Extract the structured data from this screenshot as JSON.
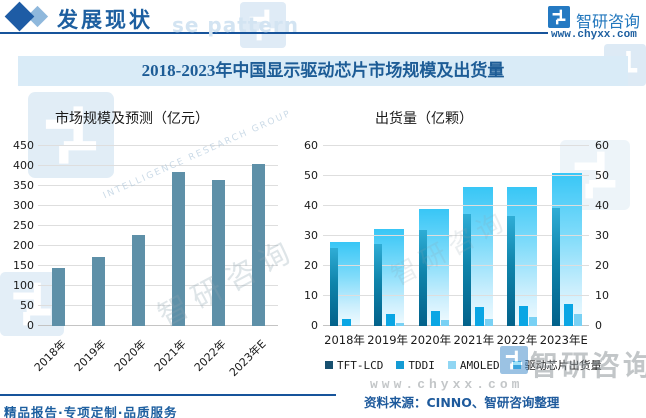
{
  "header": {
    "section_title": "发展现状",
    "brand_name": "智研咨询",
    "brand_url": "www.chyxx.com"
  },
  "banner": {
    "title": "2018-2023年中国显示驱动芯片市场规模及出货量"
  },
  "chart_data": [
    {
      "type": "bar",
      "title": "市场规模及预测（亿元）",
      "categories": [
        "2018年",
        "2019年",
        "2020年",
        "2021年",
        "2022年",
        "2023年E"
      ],
      "values": [
        145,
        173,
        228,
        384,
        366,
        405
      ],
      "ylim": [
        0,
        450
      ],
      "yticks": [
        0,
        50,
        100,
        150,
        200,
        250,
        300,
        350,
        400,
        450
      ],
      "bar_color": "#5e90a8",
      "grid": true,
      "legend_position": "none"
    },
    {
      "type": "bar",
      "title": "出货量（亿颗）",
      "categories": [
        "2018年",
        "2019年",
        "2020年",
        "2021年",
        "2022年",
        "2023年E"
      ],
      "series": [
        {
          "name": "TFT-LCD",
          "values": [
            26,
            27.5,
            32,
            37.5,
            36.8,
            39.5
          ],
          "legend_color": "#17506f"
        },
        {
          "name": "TDDI",
          "values": [
            2.2,
            4,
            5,
            6.5,
            6.8,
            7.4
          ],
          "legend_color": "#149bd4"
        },
        {
          "name": "AMOLED",
          "values": [
            0,
            1.1,
            1.9,
            2.5,
            3,
            4
          ],
          "legend_color": "#90d6f3"
        },
        {
          "name": "驱动芯片出货量",
          "values": [
            28,
            32.5,
            39,
            46.5,
            46.5,
            51
          ],
          "legend_color": "#4ec9f4"
        }
      ],
      "ylim": [
        0,
        60
      ],
      "yticks": [
        0,
        10,
        20,
        30,
        40,
        50,
        60
      ],
      "dual_axis": true,
      "grid": true,
      "legend_position": "bottom"
    }
  ],
  "footer": {
    "services": "精品报告·专项定制·品质服务",
    "source": "资料来源：CINNO、智研咨询整理"
  },
  "watermarks": {
    "pattern_text": "se pattern",
    "brand": "智研咨询",
    "url": "www.chyxx.com",
    "tagline": "INTELLIGENCE RESEARCH GROUP"
  },
  "colors": {
    "navy": "#17549b",
    "banner_bg": "#d9ebf7",
    "market_bar": "#5e90a8",
    "tft_gradient_top": "#2fadd6",
    "tft_gradient_bottom": "#02618a",
    "tddi": "#0aa6e4",
    "amoled": "#79d1f4",
    "total_gradient_top": "#38c6f6",
    "total_gradient_bottom": "#f2fbff"
  }
}
